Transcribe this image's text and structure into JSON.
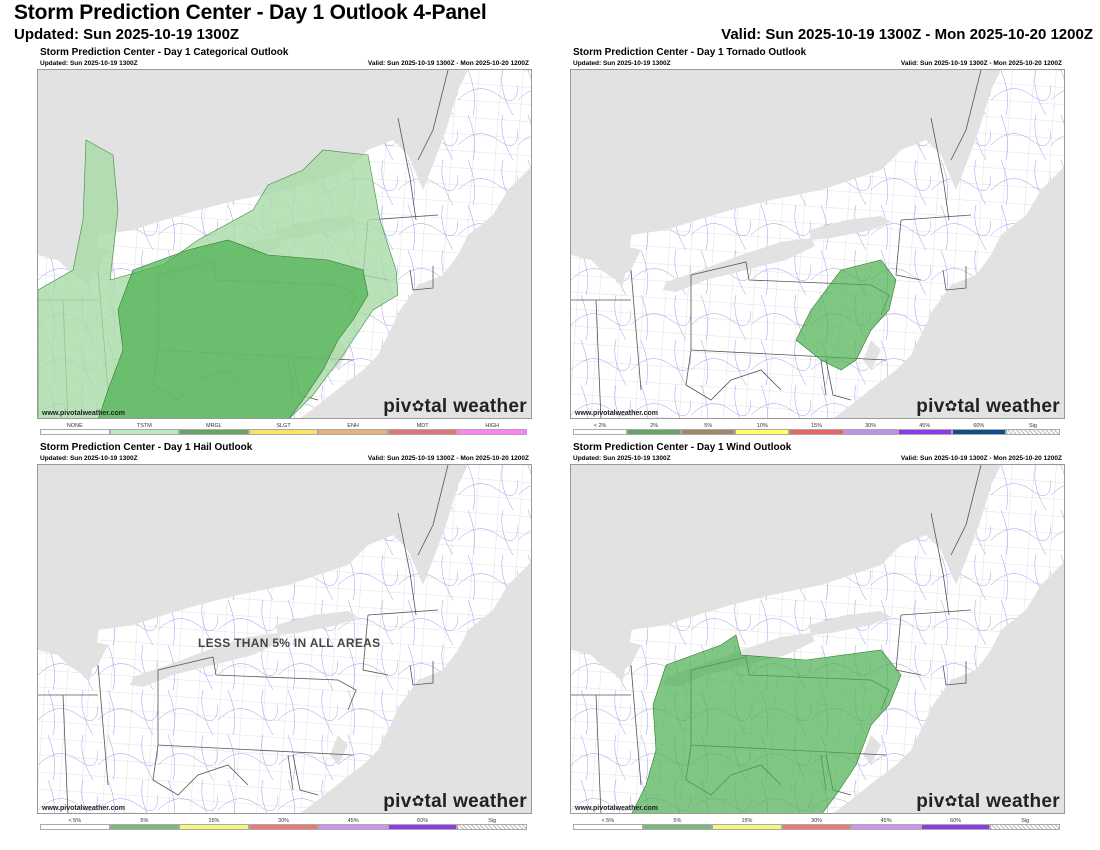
{
  "header": {
    "title": "Storm Prediction Center - Day 1 Outlook 4-Panel",
    "updated": "Updated: Sun 2025-10-19 1300Z",
    "valid": "Valid: Sun 2025-10-19 1300Z - Mon 2025-10-20 1200Z"
  },
  "panels": [
    {
      "title": "Storm Prediction Center - Day 1 Categorical Outlook",
      "updated": "Updated: Sun 2025-10-19 1300Z",
      "valid": "Valid: Sun 2025-10-19 1300Z - Mon 2025-10-20 1200Z",
      "credit": "www.pivotalweather.com",
      "brand_left": "piv",
      "brand_right": "tal weather",
      "legend": [
        {
          "label": "NONE",
          "color": "#ffffff"
        },
        {
          "label": "TSTM",
          "color": "#c1e9c1"
        },
        {
          "label": "MRGL",
          "color": "#66a366"
        },
        {
          "label": "SLGT",
          "color": "#ffe066"
        },
        {
          "label": "ENH",
          "color": "#e6b380"
        },
        {
          "label": "MDT",
          "color": "#e67373"
        },
        {
          "label": "HIGH",
          "color": "#ff80ff"
        }
      ]
    },
    {
      "title": "Storm Prediction Center - Day 1 Tornado Outlook",
      "updated": "Updated: Sun 2025-10-19 1300Z",
      "valid": "Valid: Sun 2025-10-19 1300Z - Mon 2025-10-20 1200Z",
      "credit": "www.pivotalweather.com",
      "brand_left": "piv",
      "brand_right": "tal weather",
      "legend": [
        {
          "label": "< 2%",
          "color": "#ffffff"
        },
        {
          "label": "2%",
          "color": "#66a366"
        },
        {
          "label": "5%",
          "color": "#9c8766"
        },
        {
          "label": "10%",
          "color": "#ffff66"
        },
        {
          "label": "15%",
          "color": "#e66666"
        },
        {
          "label": "30%",
          "color": "#c28cf2"
        },
        {
          "label": "45%",
          "color": "#8c3ce6"
        },
        {
          "label": "60%",
          "color": "#104e8b"
        },
        {
          "label": "Sig",
          "color": "hatch"
        }
      ]
    },
    {
      "title": "Storm Prediction Center - Day 1 Hail Outlook",
      "updated": "Updated: Sun 2025-10-19 1300Z",
      "valid": "Valid: Sun 2025-10-19 1300Z - Mon 2025-10-20 1200Z",
      "credit": "www.pivotalweather.com",
      "brand_left": "piv",
      "brand_right": "tal weather",
      "note": "LESS THAN 5% IN ALL AREAS",
      "legend": [
        {
          "label": "< 5%",
          "color": "#ffffff"
        },
        {
          "label": "5%",
          "color": "#7ab87a"
        },
        {
          "label": "15%",
          "color": "#f6f67a"
        },
        {
          "label": "30%",
          "color": "#ea7a7a"
        },
        {
          "label": "45%",
          "color": "#c896f0"
        },
        {
          "label": "60%",
          "color": "#8c3ce6"
        },
        {
          "label": "Sig",
          "color": "hatch"
        }
      ]
    },
    {
      "title": "Storm Prediction Center - Day 1 Wind Outlook",
      "updated": "Updated: Sun 2025-10-19 1300Z",
      "valid": "Valid: Sun 2025-10-19 1300Z - Mon 2025-10-20 1200Z",
      "credit": "www.pivotalweather.com",
      "brand_left": "piv",
      "brand_right": "tal weather",
      "legend": [
        {
          "label": "< 5%",
          "color": "#ffffff"
        },
        {
          "label": "5%",
          "color": "#7ab87a"
        },
        {
          "label": "15%",
          "color": "#f6f67a"
        },
        {
          "label": "30%",
          "color": "#ea7a7a"
        },
        {
          "label": "45%",
          "color": "#c896f0"
        },
        {
          "label": "60%",
          "color": "#8c3ce6"
        },
        {
          "label": "Sig",
          "color": "hatch"
        }
      ]
    }
  ],
  "map_style": {
    "water_color": "#e2e2e2",
    "state_line_color": "#555555",
    "county_line_color": "#b8b8b8",
    "road_color": "#8c8cf0",
    "mrgl_fill": "#4caf50",
    "tstm_fill": "#a8dba8"
  }
}
